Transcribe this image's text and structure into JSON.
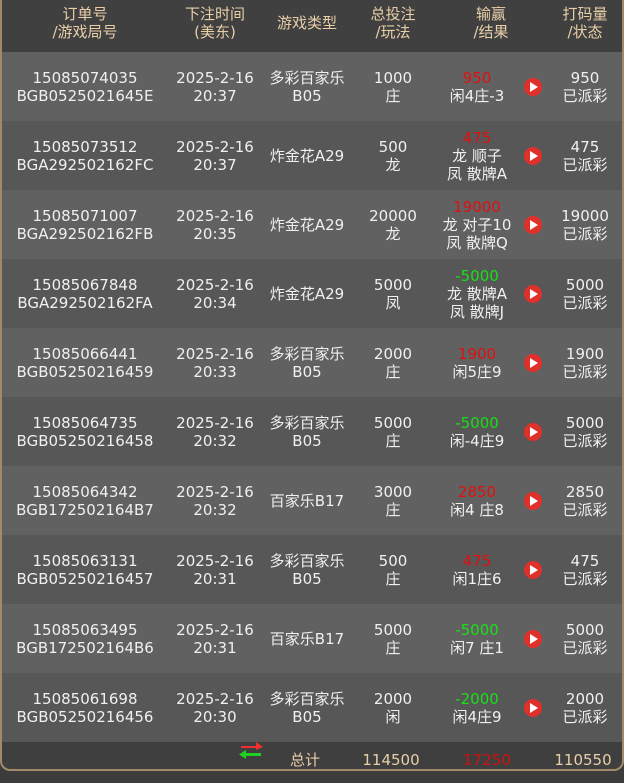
{
  "header": {
    "order": "订单号\n/游戏局号",
    "time": "下注时间\n(美东)",
    "game": "游戏类型",
    "bet": "总投注\n/玩法",
    "winloss": "输赢\n/结果",
    "turnover": "打码量\n/状态"
  },
  "colors": {
    "win": "#e01010",
    "loss": "#18e018",
    "header_text": "#e8cfa8"
  },
  "rows": [
    {
      "order": "15085074035",
      "round": "BGB0525021645E",
      "date": "2025-2-16",
      "time": "20:37",
      "game": "多彩百家乐\nB05",
      "bet": "1000",
      "play": "庄",
      "winloss": "950",
      "result": "闲4庄-3",
      "turnover": "950",
      "status": "已派彩"
    },
    {
      "order": "15085073512",
      "round": "BGA292502162FC",
      "date": "2025-2-16",
      "time": "20:37",
      "game": "炸金花A29",
      "bet": "500",
      "play": "龙",
      "winloss": "475",
      "result": "龙 顺子\n凤 散牌A",
      "turnover": "475",
      "status": "已派彩"
    },
    {
      "order": "15085071007",
      "round": "BGA292502162FB",
      "date": "2025-2-16",
      "time": "20:35",
      "game": "炸金花A29",
      "bet": "20000",
      "play": "龙",
      "winloss": "19000",
      "result": "龙 对子10\n凤 散牌Q",
      "turnover": "19000",
      "status": "已派彩"
    },
    {
      "order": "15085067848",
      "round": "BGA292502162FA",
      "date": "2025-2-16",
      "time": "20:34",
      "game": "炸金花A29",
      "bet": "5000",
      "play": "凤",
      "winloss": "-5000",
      "result": "龙 散牌A\n凤 散牌J",
      "turnover": "5000",
      "status": "已派彩"
    },
    {
      "order": "15085066441",
      "round": "BGB05250216459",
      "date": "2025-2-16",
      "time": "20:33",
      "game": "多彩百家乐\nB05",
      "bet": "2000",
      "play": "庄",
      "winloss": "1900",
      "result": "闲5庄9",
      "turnover": "1900",
      "status": "已派彩"
    },
    {
      "order": "15085064735",
      "round": "BGB05250216458",
      "date": "2025-2-16",
      "time": "20:32",
      "game": "多彩百家乐\nB05",
      "bet": "5000",
      "play": "庄",
      "winloss": "-5000",
      "result": "闲-4庄9",
      "turnover": "5000",
      "status": "已派彩"
    },
    {
      "order": "15085064342",
      "round": "BGB172502164B7",
      "date": "2025-2-16",
      "time": "20:32",
      "game": "百家乐B17",
      "bet": "3000",
      "play": "庄",
      "winloss": "2850",
      "result": "闲4 庄8",
      "turnover": "2850",
      "status": "已派彩"
    },
    {
      "order": "15085063131",
      "round": "BGB05250216457",
      "date": "2025-2-16",
      "time": "20:31",
      "game": "多彩百家乐\nB05",
      "bet": "500",
      "play": "庄",
      "winloss": "475",
      "result": "闲1庄6",
      "turnover": "475",
      "status": "已派彩"
    },
    {
      "order": "15085063495",
      "round": "BGB172502164B6",
      "date": "2025-2-16",
      "time": "20:31",
      "game": "百家乐B17",
      "bet": "5000",
      "play": "庄",
      "winloss": "-5000",
      "result": "闲7 庄1",
      "turnover": "5000",
      "status": "已派彩"
    },
    {
      "order": "15085061698",
      "round": "BGB05250216456",
      "date": "2025-2-16",
      "time": "20:30",
      "game": "多彩百家乐\nB05",
      "bet": "2000",
      "play": "闲",
      "winloss": "-2000",
      "result": "闲4庄9",
      "turnover": "2000",
      "status": "已派彩"
    }
  ],
  "footer": {
    "label": "总计",
    "total_bet": "114500",
    "total_winloss": "17250",
    "total_turnover": "110550"
  }
}
